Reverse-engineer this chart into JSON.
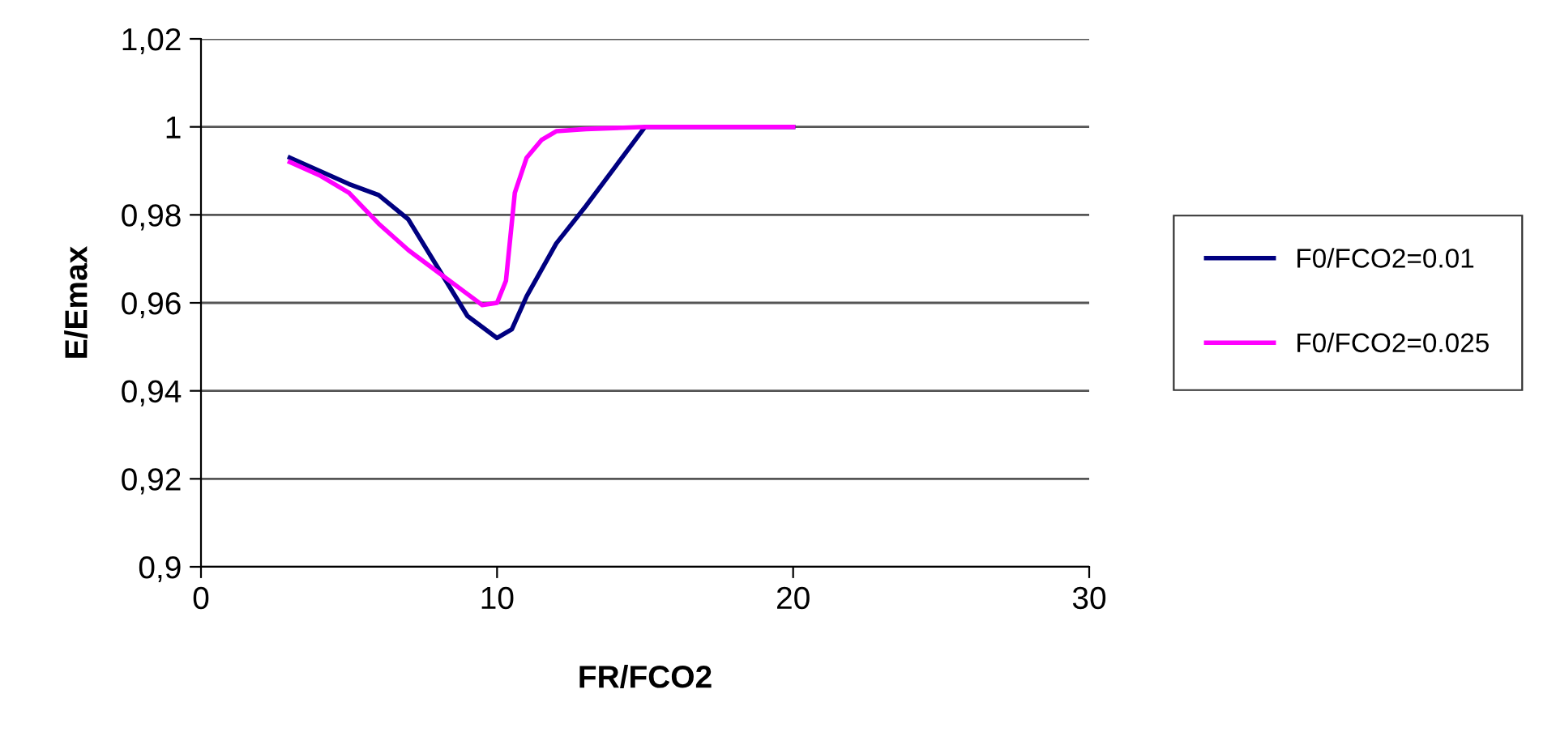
{
  "chart_data": {
    "type": "line",
    "xlabel": "FR/FCO2",
    "ylabel": "E/Emax",
    "xlim": [
      0,
      30
    ],
    "xticks": [
      0,
      10,
      20,
      30
    ],
    "ylim": [
      0.9,
      1.02
    ],
    "yticks": [
      {
        "value": 0.9,
        "label": "0,9"
      },
      {
        "value": 0.92,
        "label": "0,92"
      },
      {
        "value": 0.94,
        "label": "0,94"
      },
      {
        "value": 0.96,
        "label": "0,96"
      },
      {
        "value": 0.98,
        "label": "0,98"
      },
      {
        "value": 1.0,
        "label": "1"
      },
      {
        "value": 1.02,
        "label": "1,02"
      }
    ],
    "grid": "y",
    "legend": "right",
    "marker": "none",
    "line_style": "solid",
    "series": [
      {
        "name": "F0/FCO2=0.01",
        "color": "#000080",
        "x": [
          3,
          5,
          6,
          7,
          8,
          9,
          10,
          10.5,
          11,
          12,
          13,
          14,
          15,
          20
        ],
        "values": [
          0.993,
          0.987,
          0.9845,
          0.979,
          0.968,
          0.957,
          0.952,
          0.954,
          0.9615,
          0.9735,
          0.982,
          0.991,
          1.0,
          1.0
        ]
      },
      {
        "name": "F0/FCO2=0.025",
        "color": "#ff00ff",
        "x": [
          3,
          4,
          5,
          6,
          7,
          8,
          9,
          9.5,
          10,
          10.3,
          10.6,
          11,
          11.5,
          12,
          13,
          15,
          17,
          20
        ],
        "values": [
          0.992,
          0.989,
          0.985,
          0.978,
          0.972,
          0.967,
          0.962,
          0.9595,
          0.96,
          0.965,
          0.985,
          0.993,
          0.997,
          0.999,
          0.9995,
          1.0,
          1.0,
          1.0
        ]
      }
    ]
  }
}
